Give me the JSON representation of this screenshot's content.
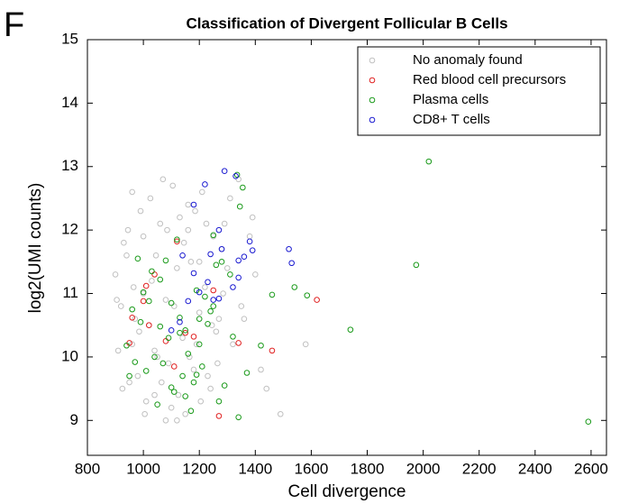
{
  "panel_label": "F",
  "chart_data": {
    "type": "scatter",
    "title": "Classification of Divergent Follicular B Cells",
    "xlabel": "Cell divergence",
    "ylabel": "log2(UMI counts)",
    "xlim": [
      800,
      2655
    ],
    "ylim": [
      8.45,
      15
    ],
    "xticks": [
      800,
      1000,
      1200,
      1400,
      1600,
      1800,
      2000,
      2200,
      2400,
      2600
    ],
    "yticks": [
      9,
      10,
      11,
      12,
      13,
      14,
      15
    ],
    "legend": "upper right",
    "series": [
      {
        "name": "No anomaly found",
        "color": "#c0c0c0",
        "x": [
          900,
          920,
          940,
          960,
          980,
          1000,
          1020,
          1040,
          1060,
          1080,
          1100,
          1120,
          1140,
          1160,
          1180,
          1200,
          1220,
          1240,
          1260,
          1280,
          910,
          930,
          950,
          970,
          990,
          1010,
          1030,
          1050,
          1070,
          1090,
          1110,
          1130,
          1150,
          1170,
          1190,
          1210,
          1230,
          1250,
          1270,
          1290,
          905,
          925,
          945,
          965,
          985,
          1005,
          1025,
          1045,
          1065,
          1085,
          1105,
          1125,
          1145,
          1165,
          1185,
          1205,
          1225,
          1245,
          1265,
          1285,
          1300,
          1320,
          1340,
          1360,
          1380,
          1400,
          1420,
          1440,
          1310,
          1350,
          1390,
          1580,
          1490,
          960,
          1000,
          1040,
          1080,
          1120,
          1160,
          1200
        ],
        "y": [
          11.3,
          10.8,
          11.6,
          10.2,
          9.7,
          11.9,
          10.5,
          9.4,
          12.1,
          10.9,
          9.2,
          11.4,
          10.3,
          12.4,
          9.8,
          10.7,
          11.1,
          9.5,
          10.4,
          11.7,
          10.1,
          11.8,
          9.6,
          10.6,
          12.3,
          9.3,
          11.2,
          10.0,
          12.8,
          9.9,
          10.8,
          12.2,
          9.1,
          11.5,
          10.2,
          12.6,
          9.7,
          11.9,
          10.6,
          12.1,
          10.9,
          9.5,
          12.0,
          11.1,
          10.4,
          9.1,
          12.5,
          11.6,
          9.6,
          12.0,
          12.7,
          9.4,
          11.8,
          10.0,
          12.3,
          9.3,
          12.1,
          10.5,
          9.9,
          11.0,
          11.4,
          10.2,
          12.8,
          10.6,
          11.9,
          11.3,
          9.8,
          9.5,
          12.5,
          10.8,
          12.2,
          10.2,
          9.1,
          12.6,
          11.0,
          10.1,
          9.0,
          9.0,
          12.0,
          11.5
        ]
      },
      {
        "name": "Red blood cell precursors",
        "color": "#e02020",
        "x": [
          1620,
          1460,
          1340,
          1270,
          1250,
          1180,
          1120,
          1110,
          1080,
          1040,
          1020,
          1010,
          1000,
          960,
          950,
          1150
        ],
        "y": [
          10.9,
          10.1,
          10.22,
          9.07,
          11.05,
          10.32,
          11.82,
          9.85,
          10.25,
          11.3,
          10.5,
          11.12,
          10.88,
          10.62,
          10.22,
          10.38
        ]
      },
      {
        "name": "Plasma cells",
        "color": "#1a9a1a",
        "x": [
          2590,
          2020,
          1975,
          1740,
          1585,
          1540,
          1460,
          1420,
          1370,
          1340,
          1335,
          1355,
          1345,
          1320,
          1290,
          1270,
          1260,
          1250,
          1240,
          1230,
          1220,
          1210,
          1200,
          1190,
          1180,
          1170,
          1160,
          1150,
          1140,
          1130,
          1120,
          1110,
          1100,
          1090,
          1080,
          1070,
          1060,
          1050,
          1040,
          1030,
          1020,
          1010,
          1000,
          990,
          980,
          970,
          960,
          950,
          940,
          1130,
          1190,
          1250,
          1280,
          1310,
          1100,
          1060,
          1200,
          1150
        ],
        "y": [
          8.98,
          13.08,
          11.45,
          10.43,
          10.97,
          11.1,
          10.98,
          10.18,
          9.75,
          9.05,
          12.87,
          12.67,
          12.37,
          10.32,
          9.55,
          9.3,
          11.45,
          11.92,
          10.72,
          10.52,
          10.95,
          9.85,
          10.2,
          11.05,
          9.6,
          9.15,
          10.05,
          10.42,
          9.7,
          10.62,
          11.85,
          9.45,
          10.85,
          10.3,
          11.52,
          9.9,
          10.48,
          9.25,
          10.0,
          11.35,
          10.88,
          9.78,
          11.02,
          10.55,
          11.55,
          9.92,
          10.75,
          9.7,
          10.18,
          10.38,
          9.72,
          10.8,
          11.5,
          11.3,
          9.52,
          11.22,
          10.6,
          9.38
        ]
      },
      {
        "name": "CD8+ T cells",
        "color": "#1a1ad0",
        "x": [
          1290,
          1330,
          1220,
          1180,
          1280,
          1240,
          1390,
          1380,
          1520,
          1530,
          1340,
          1360,
          1230,
          1320,
          1340,
          1200,
          1250,
          1270,
          1160,
          1100,
          1130,
          1180,
          1270,
          1140
        ],
        "y": [
          12.93,
          12.85,
          12.72,
          12.4,
          11.7,
          11.62,
          11.68,
          11.82,
          11.7,
          11.48,
          11.52,
          11.58,
          11.18,
          11.1,
          11.25,
          11.02,
          10.9,
          10.92,
          10.88,
          10.42,
          10.55,
          11.32,
          12.0,
          11.6
        ]
      }
    ]
  }
}
